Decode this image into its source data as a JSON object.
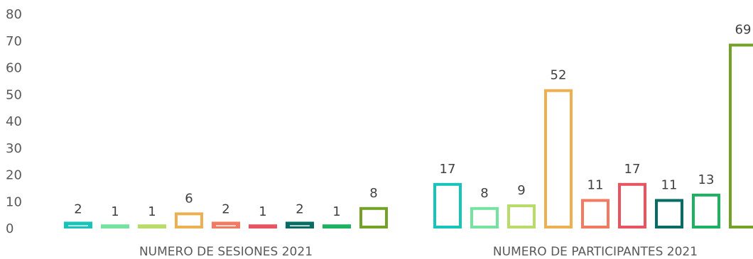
{
  "chart_data": {
    "type": "bar",
    "categories": [
      "NUMERO DE SESIONES 2021",
      "NUMERO DE PARTICIPANTES 2021"
    ],
    "series": [
      {
        "values": [
          2,
          17
        ],
        "color": "#17C4B9"
      },
      {
        "values": [
          1,
          8
        ],
        "color": "#74E39F"
      },
      {
        "values": [
          1,
          9
        ],
        "color": "#B7DD68"
      },
      {
        "values": [
          6,
          52
        ],
        "color": "#ECB050"
      },
      {
        "values": [
          2,
          11
        ],
        "color": "#F07B60"
      },
      {
        "values": [
          1,
          17
        ],
        "color": "#E85561"
      },
      {
        "values": [
          2,
          11
        ],
        "color": "#076C63"
      },
      {
        "values": [
          1,
          13
        ],
        "color": "#1DB25F"
      },
      {
        "values": [
          8,
          69
        ],
        "color": "#73A227"
      }
    ],
    "yticks": [
      0,
      10,
      20,
      30,
      40,
      50,
      60,
      70,
      80
    ],
    "ylim": [
      0,
      80
    ],
    "grid": false,
    "legend": "none",
    "bar_style": "outlined"
  }
}
